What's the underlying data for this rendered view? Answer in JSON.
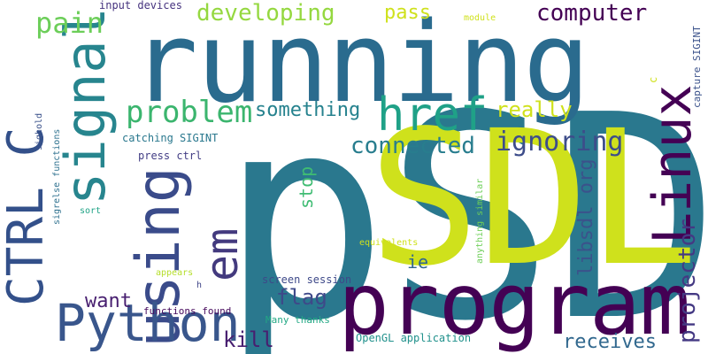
{
  "words": [
    {
      "text": "pSDL",
      "color": "#2a788e",
      "vertical": false
    },
    {
      "text": "SDL",
      "color": "#cfe11c",
      "vertical": false
    },
    {
      "text": "running",
      "color": "#2a6b8e",
      "vertical": false
    },
    {
      "text": "program",
      "color": "#440154",
      "vertical": false
    },
    {
      "text": "CTRL C",
      "color": "#33508a",
      "vertical": true
    },
    {
      "text": "signal",
      "color": "#27858e",
      "vertical": true
    },
    {
      "text": "using",
      "color": "#3a4b8a",
      "vertical": true
    },
    {
      "text": "em",
      "color": "#433a7e",
      "vertical": false
    },
    {
      "text": "Linux",
      "color": "#440154",
      "vertical": true
    },
    {
      "text": "Python",
      "color": "#39568c",
      "vertical": true
    },
    {
      "text": "href",
      "color": "#1fa187",
      "vertical": false
    },
    {
      "text": "problem",
      "color": "#3bb56e",
      "vertical": false
    },
    {
      "text": "developing",
      "color": "#95d840",
      "vertical": false
    },
    {
      "text": "computer",
      "color": "#440154",
      "vertical": false
    },
    {
      "text": "pain",
      "color": "#6cce59",
      "vertical": false
    },
    {
      "text": "pass",
      "color": "#cfe11c",
      "vertical": false
    },
    {
      "text": "something",
      "color": "#26828e",
      "vertical": false
    },
    {
      "text": "connected",
      "color": "#287d8e",
      "vertical": false
    },
    {
      "text": "ignoring",
      "color": "#3d4d8a",
      "vertical": false
    },
    {
      "text": "really",
      "color": "#cfe11c",
      "vertical": false
    },
    {
      "text": "libsdl org",
      "color": "#3b528b",
      "vertical": true
    },
    {
      "text": "projector",
      "color": "#443983",
      "vertical": true
    },
    {
      "text": "stop",
      "color": "#3fbc73",
      "vertical": true
    },
    {
      "text": "ie",
      "color": "#31668e",
      "vertical": false
    },
    {
      "text": "flag",
      "color": "#3e4989",
      "vertical": false
    },
    {
      "text": "want",
      "color": "#481f70",
      "vertical": false
    },
    {
      "text": "kill",
      "color": "#481f70",
      "vertical": false
    },
    {
      "text": "receives",
      "color": "#31688e",
      "vertical": false
    },
    {
      "text": "capture SIGINT",
      "color": "#3b528b",
      "vertical": true
    },
    {
      "text": "c",
      "color": "#cfe11c",
      "vertical": true
    },
    {
      "text": "input devices",
      "color": "#46337f",
      "vertical": false
    },
    {
      "text": "module",
      "color": "#cfe11c",
      "vertical": false
    },
    {
      "text": "catching SIGINT",
      "color": "#2a788e",
      "vertical": false
    },
    {
      "text": "press ctrl",
      "color": "#433e85",
      "vertical": false
    },
    {
      "text": "sighold",
      "color": "#3b528b",
      "vertical": true
    },
    {
      "text": "sigrelse functions",
      "color": "#2d708e",
      "vertical": true
    },
    {
      "text": "sort",
      "color": "#20a386",
      "vertical": false
    },
    {
      "text": "appears",
      "color": "#b5de2b",
      "vertical": false
    },
    {
      "text": "h",
      "color": "#404688",
      "vertical": false
    },
    {
      "text": "functions found",
      "color": "#460a5d",
      "vertical": false
    },
    {
      "text": "screen session",
      "color": "#3e4989",
      "vertical": false
    },
    {
      "text": "Many thanks",
      "color": "#22a884",
      "vertical": false
    },
    {
      "text": "OpenGL application",
      "color": "#21918c",
      "vertical": false
    },
    {
      "text": "anything similar",
      "color": "#6ece58",
      "vertical": true
    },
    {
      "text": "equivalents",
      "color": "#cfe11c",
      "vertical": false
    }
  ]
}
